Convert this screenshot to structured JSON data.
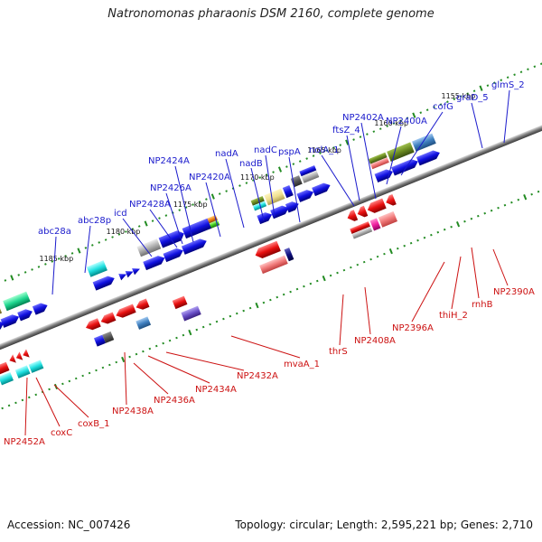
{
  "title": "Natronomonas pharaonis DSM 2160, complete genome",
  "footer": {
    "accession": "Accession: NC_007426",
    "summary": "Topology: circular; Length: 2,595,221 bp; Genes: 2,710"
  },
  "colors": {
    "backbone": "#808080",
    "tick": "#228b22",
    "blue_gene": "#1010e0",
    "red_gene": "#e81010",
    "label_blue": "#1a1acc",
    "label_red": "#cc1111"
  },
  "kbp_markers": [
    {
      "label": "1185 kbp",
      "pos": 92
    },
    {
      "label": "1180 kbp",
      "pos": 172
    },
    {
      "label": "1175 kbp",
      "pos": 252
    },
    {
      "label": "1170 kbp",
      "pos": 332
    },
    {
      "label": "1165 kbp",
      "pos": 412
    },
    {
      "label": "1160 kbp",
      "pos": 492
    },
    {
      "label": "1155 kbp",
      "pos": 572
    }
  ],
  "top_labels": [
    {
      "text": "abc28a"
    },
    {
      "text": "abc28p"
    },
    {
      "text": "icd"
    },
    {
      "text": "NP2428A"
    },
    {
      "text": "NP2426A"
    },
    {
      "text": "NP2424A"
    },
    {
      "text": "NP2420A"
    },
    {
      "text": "nadA"
    },
    {
      "text": "nadB"
    },
    {
      "text": "nadC"
    },
    {
      "text": "pspA"
    },
    {
      "text": "nolA_1"
    },
    {
      "text": "ftsZ_4"
    },
    {
      "text": "NP2402A"
    },
    {
      "text": "NP2400A"
    },
    {
      "text": "cofG"
    },
    {
      "text": "graD_5"
    },
    {
      "text": "glmS_2"
    }
  ],
  "bottom_labels": [
    {
      "text": "NP2452A"
    },
    {
      "text": "coxC"
    },
    {
      "text": "coxB_1"
    },
    {
      "text": "NP2438A"
    },
    {
      "text": "NP2436A"
    },
    {
      "text": "NP2434A"
    },
    {
      "text": "NP2432A"
    },
    {
      "text": "mvaA_1"
    },
    {
      "text": "thrS"
    },
    {
      "text": "NP2408A"
    },
    {
      "text": "NP2396A"
    },
    {
      "text": "thiH_2"
    },
    {
      "text": "rnhB"
    },
    {
      "text": "NP2390A"
    }
  ]
}
